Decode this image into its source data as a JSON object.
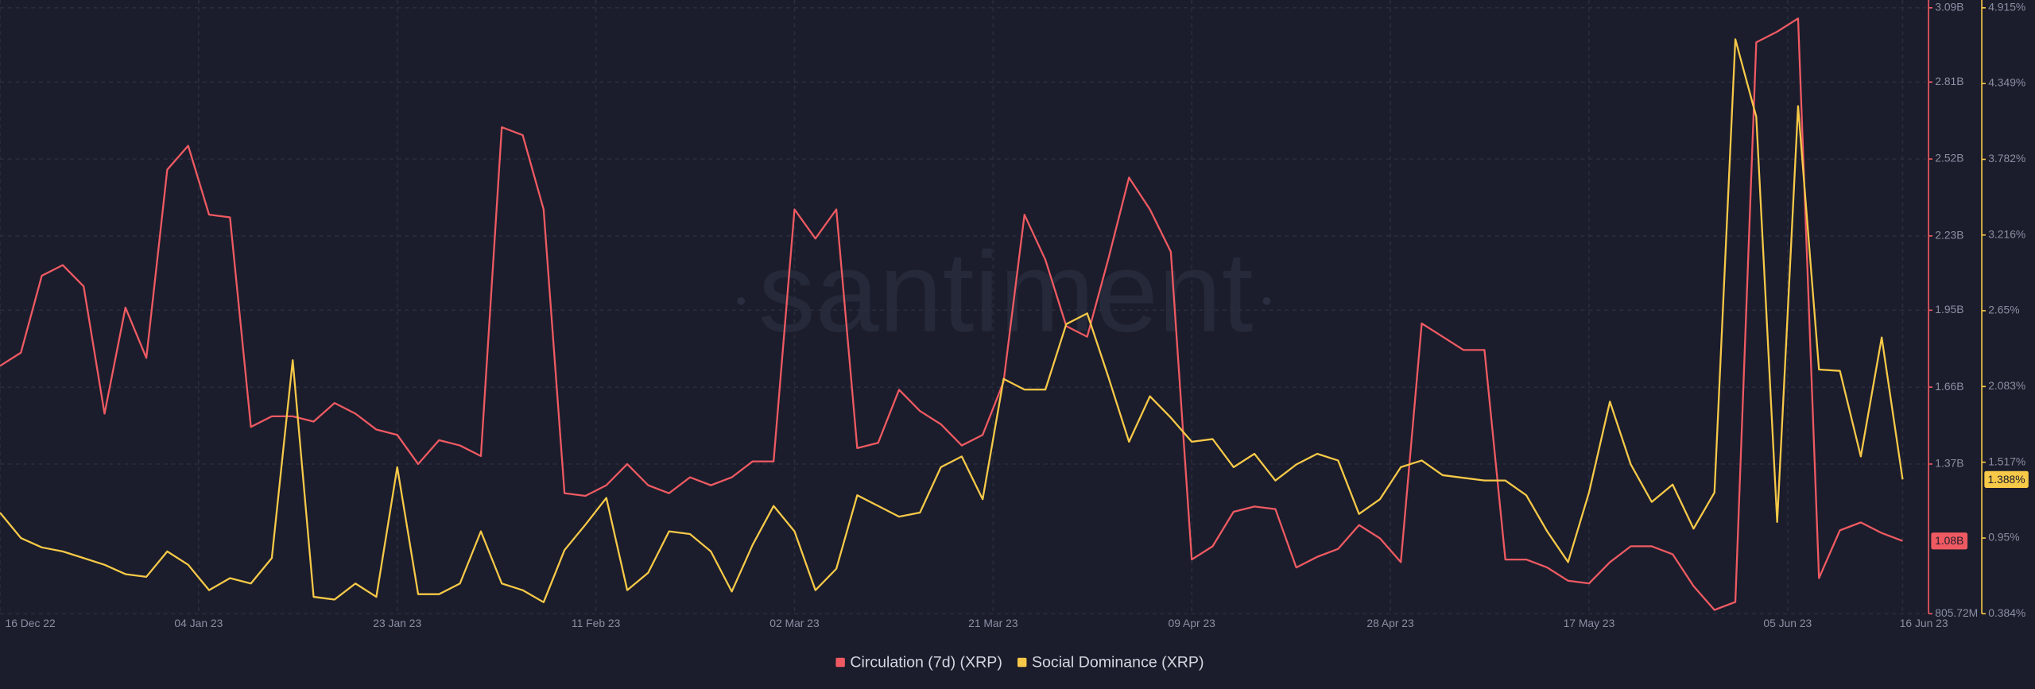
{
  "chart_data": {
    "type": "line",
    "watermark": "santiment",
    "x": [
      "16 Dec 22",
      "18 Dec 22",
      "20 Dec 22",
      "22 Dec 22",
      "24 Dec 22",
      "26 Dec 22",
      "28 Dec 22",
      "30 Dec 22",
      "01 Jan 23",
      "03 Jan 23",
      "05 Jan 23",
      "07 Jan 23",
      "09 Jan 23",
      "11 Jan 23",
      "13 Jan 23",
      "15 Jan 23",
      "17 Jan 23",
      "19 Jan 23",
      "21 Jan 23",
      "23 Jan 23",
      "25 Jan 23",
      "27 Jan 23",
      "29 Jan 23",
      "31 Jan 23",
      "02 Feb 23",
      "04 Feb 23",
      "06 Feb 23",
      "08 Feb 23",
      "10 Feb 23",
      "12 Feb 23",
      "14 Feb 23",
      "16 Feb 23",
      "18 Feb 23",
      "20 Feb 23",
      "22 Feb 23",
      "24 Feb 23",
      "26 Feb 23",
      "28 Feb 23",
      "02 Mar 23",
      "04 Mar 23",
      "06 Mar 23",
      "08 Mar 23",
      "10 Mar 23",
      "12 Mar 23",
      "14 Mar 23",
      "16 Mar 23",
      "18 Mar 23",
      "20 Mar 23",
      "22 Mar 23",
      "24 Mar 23",
      "26 Mar 23",
      "28 Mar 23",
      "30 Mar 23",
      "01 Apr 23",
      "03 Apr 23",
      "05 Apr 23",
      "07 Apr 23",
      "09 Apr 23",
      "11 Apr 23",
      "13 Apr 23",
      "15 Apr 23",
      "17 Apr 23",
      "19 Apr 23",
      "21 Apr 23",
      "23 Apr 23",
      "25 Apr 23",
      "27 Apr 23",
      "29 Apr 23",
      "01 May 23",
      "03 May 23",
      "05 May 23",
      "07 May 23",
      "09 May 23",
      "11 May 23",
      "13 May 23",
      "15 May 23",
      "17 May 23",
      "19 May 23",
      "21 May 23",
      "23 May 23",
      "25 May 23",
      "27 May 23",
      "29 May 23",
      "31 May 23",
      "02 Jun 23",
      "04 Jun 23",
      "06 Jun 23",
      "08 Jun 23",
      "10 Jun 23",
      "12 Jun 23",
      "14 Jun 23",
      "16 Jun 23"
    ],
    "xlim": [
      "16 Dec 22",
      "16 Jun 23"
    ],
    "xticks": [
      "16 Dec 22",
      "04 Jan 23",
      "23 Jan 23",
      "11 Feb 23",
      "02 Mar 23",
      "21 Mar 23",
      "09 Apr 23",
      "28 Apr 23",
      "17 May 23",
      "05 Jun 23",
      "16 Jun 23"
    ],
    "ylim": [
      0.80572,
      3.09
    ],
    "yticks": [
      {
        "value": 3.09,
        "label": "3.09B"
      },
      {
        "value": 2.81,
        "label": "2.81B"
      },
      {
        "value": 2.52,
        "label": "2.52B"
      },
      {
        "value": 2.23,
        "label": "2.23B"
      },
      {
        "value": 1.95,
        "label": "1.95B"
      },
      {
        "value": 1.66,
        "label": "1.66B"
      },
      {
        "value": 1.37,
        "label": "1.37B"
      },
      {
        "value": 0.80572,
        "label": "805.72M"
      }
    ],
    "y2lim": [
      0.384,
      4.915
    ],
    "y2ticks": [
      {
        "value": 4.915,
        "label": "4.915%"
      },
      {
        "value": 4.349,
        "label": "4.349%"
      },
      {
        "value": 3.782,
        "label": "3.782%"
      },
      {
        "value": 3.216,
        "label": "3.216%"
      },
      {
        "value": 2.65,
        "label": "2.65%"
      },
      {
        "value": 2.083,
        "label": "2.083%"
      },
      {
        "value": 1.517,
        "label": "1.517%"
      },
      {
        "value": 0.95,
        "label": "0.95%"
      },
      {
        "value": 0.384,
        "label": "0.384%"
      }
    ],
    "grid": true,
    "series": [
      {
        "name": "Circulation (7d) (XRP)",
        "color": "#ef5a62",
        "axis": "y",
        "values": [
          1.74,
          1.79,
          2.08,
          2.12,
          2.04,
          1.56,
          1.96,
          1.77,
          2.48,
          2.57,
          2.31,
          2.3,
          1.51,
          1.55,
          1.55,
          1.53,
          1.6,
          1.56,
          1.5,
          1.48,
          1.37,
          1.46,
          1.44,
          1.4,
          2.64,
          2.61,
          2.33,
          1.26,
          1.25,
          1.29,
          1.37,
          1.29,
          1.26,
          1.32,
          1.29,
          1.32,
          1.38,
          1.38,
          2.33,
          2.22,
          2.33,
          1.43,
          1.45,
          1.65,
          1.57,
          1.52,
          1.44,
          1.48,
          1.68,
          2.31,
          2.14,
          1.89,
          1.85,
          2.14,
          2.45,
          2.33,
          2.17,
          1.01,
          1.06,
          1.19,
          1.21,
          1.2,
          0.98,
          1.02,
          1.05,
          1.14,
          1.09,
          1.0,
          1.9,
          1.85,
          1.8,
          1.8,
          1.01,
          1.01,
          0.98,
          0.93,
          0.92,
          1.0,
          1.06,
          1.06,
          1.03,
          0.91,
          0.82,
          0.85,
          2.96,
          3.0,
          3.05,
          0.94,
          1.12,
          1.15,
          1.11,
          1.08
        ],
        "value_labels": [
          null,
          null,
          null,
          null,
          null,
          null,
          null,
          null,
          null,
          null,
          null,
          null,
          null,
          null,
          null,
          null,
          null,
          null,
          null,
          null,
          null,
          null,
          null,
          null,
          null,
          null,
          null,
          null,
          null,
          null,
          null,
          null,
          null,
          null,
          null,
          null,
          null,
          null,
          null,
          null,
          null,
          null,
          null,
          null,
          null,
          null,
          null,
          null,
          null,
          null,
          null,
          null,
          null,
          null,
          null,
          null,
          null,
          null,
          null,
          null,
          null,
          null,
          null,
          null,
          null,
          null,
          null,
          null,
          null,
          null,
          null,
          null,
          null,
          null,
          null,
          null,
          null,
          null,
          null,
          null,
          null,
          null,
          null,
          null,
          null,
          null,
          null,
          null,
          null,
          null,
          null,
          "1.08B"
        ]
      },
      {
        "name": "Social Dominance (XRP)",
        "color": "#f7c948",
        "axis": "y2",
        "values": [
          1.14,
          0.95,
          0.88,
          0.85,
          0.8,
          0.75,
          0.68,
          0.66,
          0.85,
          0.75,
          0.56,
          0.65,
          0.61,
          0.8,
          2.28,
          0.51,
          0.49,
          0.61,
          0.51,
          1.48,
          0.53,
          0.53,
          0.61,
          1.0,
          0.61,
          0.56,
          0.47,
          0.86,
          1.05,
          1.25,
          0.56,
          0.69,
          1.0,
          0.98,
          0.85,
          0.55,
          0.9,
          1.19,
          1.0,
          0.56,
          0.72,
          1.27,
          1.19,
          1.11,
          1.14,
          1.48,
          1.56,
          1.24,
          2.14,
          2.06,
          2.06,
          2.55,
          2.63,
          2.16,
          1.67,
          2.01,
          1.85,
          1.67,
          1.69,
          1.48,
          1.58,
          1.38,
          1.5,
          1.58,
          1.53,
          1.13,
          1.24,
          1.48,
          1.53,
          1.42,
          1.4,
          1.38,
          1.38,
          1.27,
          1.0,
          0.77,
          1.29,
          1.97,
          1.5,
          1.22,
          1.35,
          1.02,
          1.29,
          4.68,
          4.1,
          1.07,
          4.18,
          2.21,
          2.2,
          1.56,
          2.45,
          1.388
        ],
        "value_labels": [
          null,
          null,
          null,
          null,
          null,
          null,
          null,
          null,
          null,
          null,
          null,
          null,
          null,
          null,
          null,
          null,
          null,
          null,
          null,
          null,
          null,
          null,
          null,
          null,
          null,
          null,
          null,
          null,
          null,
          null,
          null,
          null,
          null,
          null,
          null,
          null,
          null,
          null,
          null,
          null,
          null,
          null,
          null,
          null,
          null,
          null,
          null,
          null,
          null,
          null,
          null,
          null,
          null,
          null,
          null,
          null,
          null,
          null,
          null,
          null,
          null,
          null,
          null,
          null,
          null,
          null,
          null,
          null,
          null,
          null,
          null,
          null,
          null,
          null,
          null,
          null,
          null,
          null,
          null,
          null,
          null,
          null,
          null,
          null,
          null,
          null,
          null,
          null,
          null,
          null,
          null,
          "1.388%"
        ]
      }
    ]
  }
}
